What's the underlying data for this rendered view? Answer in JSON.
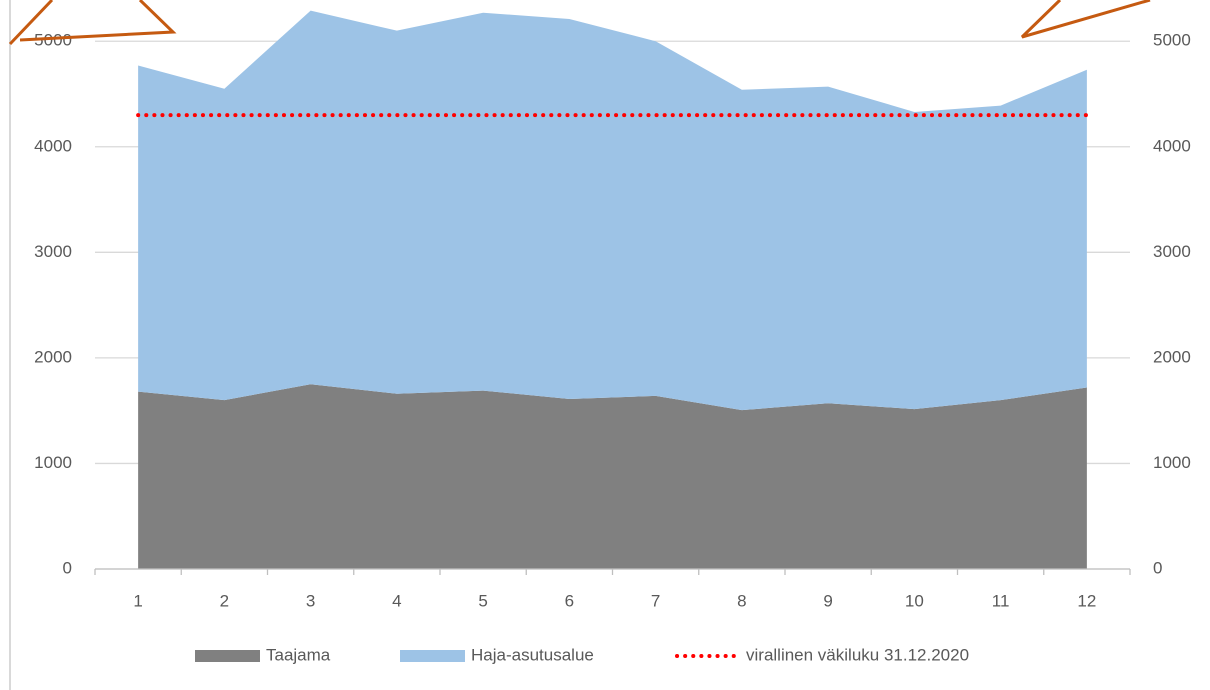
{
  "chart_data": {
    "type": "area",
    "categories": [
      "1",
      "2",
      "3",
      "4",
      "5",
      "6",
      "7",
      "8",
      "9",
      "10",
      "11",
      "12"
    ],
    "series": [
      {
        "name": "Taajama",
        "color": "#808080",
        "values": [
          1680,
          1600,
          1750,
          1660,
          1690,
          1610,
          1640,
          1505,
          1570,
          1515,
          1600,
          1720
        ]
      },
      {
        "name": "Haja-asutusalue",
        "color": "#9dc3e6",
        "values": [
          3090,
          2950,
          3540,
          3440,
          3580,
          3600,
          3360,
          3035,
          3000,
          2815,
          2790,
          3010
        ]
      },
      {
        "name": "virallinen väkiluku 31.12.2020",
        "type": "line",
        "color": "#ff0000",
        "values": [
          4300,
          4300,
          4300,
          4300,
          4300,
          4300,
          4300,
          4300,
          4300,
          4300,
          4300,
          4300
        ]
      }
    ],
    "ylim": [
      0,
      5400
    ],
    "yticks": [
      0,
      1000,
      2000,
      3000,
      4000,
      5000
    ],
    "y2lim": [
      0,
      5400
    ],
    "y2ticks": [
      0,
      1000,
      2000,
      3000,
      4000,
      5000
    ],
    "grid": true,
    "legend": "bottom"
  }
}
